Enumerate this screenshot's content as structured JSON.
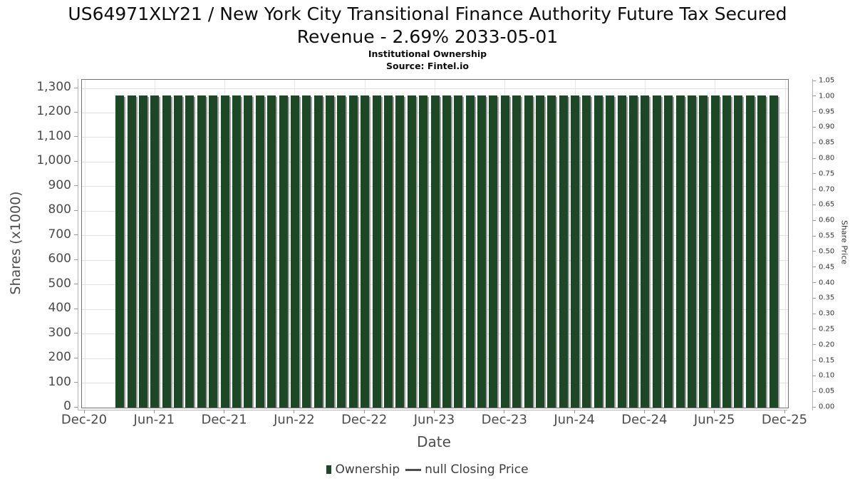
{
  "page": {
    "title_lines": [
      "US64971XLY21 / New York City Transitional Finance Authority Future Tax Secured",
      "Revenue - 2.69% 2033-05-01"
    ],
    "subtitle": "Institutional Ownership",
    "source": "Source: Fintel.io"
  },
  "chart_data": {
    "type": "bar",
    "title": "US64971XLY21 / New York City Transitional Finance Authority Future Tax Secured Revenue - 2.69% 2033-05-01",
    "subtitle": "Institutional Ownership",
    "source": "Source: Fintel.io",
    "xlabel": "Date",
    "ylabel_left": "Shares (x1000)",
    "ylabel_right": "Share Price",
    "grid": true,
    "legend_position": "bottom",
    "x_ticks": [
      "Dec-20",
      "Jun-21",
      "Dec-21",
      "Jun-22",
      "Dec-22",
      "Jun-23",
      "Dec-23",
      "Jun-24",
      "Dec-24",
      "Jun-25",
      "Dec-25"
    ],
    "yleft_ticks": [
      "0",
      "100",
      "200",
      "300",
      "400",
      "500",
      "600",
      "700",
      "800",
      "900",
      "1,000",
      "1,100",
      "1,200",
      "1,300"
    ],
    "yleft_range": [
      0,
      1300
    ],
    "yright_range": [
      0,
      1.05
    ],
    "yright_step": 0.05,
    "categories": [
      "Mar-21",
      "Apr-21",
      "May-21",
      "Jun-21",
      "Jul-21",
      "Aug-21",
      "Sep-21",
      "Oct-21",
      "Nov-21",
      "Dec-21",
      "Jan-22",
      "Feb-22",
      "Mar-22",
      "Apr-22",
      "May-22",
      "Jun-22",
      "Jul-22",
      "Aug-22",
      "Sep-22",
      "Oct-22",
      "Nov-22",
      "Dec-22",
      "Jan-23",
      "Feb-23",
      "Mar-23",
      "Apr-23",
      "May-23",
      "Jun-23",
      "Jul-23",
      "Aug-23",
      "Sep-23",
      "Oct-23",
      "Nov-23",
      "Dec-23",
      "Jan-24",
      "Feb-24",
      "Mar-24",
      "Apr-24",
      "May-24",
      "Jun-24",
      "Jul-24",
      "Aug-24",
      "Sep-24",
      "Oct-24",
      "Nov-24",
      "Dec-24",
      "Jan-25",
      "Feb-25",
      "Mar-25",
      "Apr-25",
      "May-25",
      "Jun-25",
      "Jul-25",
      "Aug-25",
      "Sep-25",
      "Oct-25",
      "Nov-25"
    ],
    "series": [
      {
        "name": "Ownership",
        "type": "bar",
        "color": "#1d4826",
        "values": [
          1270,
          1270,
          1270,
          1270,
          1270,
          1270,
          1270,
          1270,
          1270,
          1270,
          1270,
          1270,
          1270,
          1270,
          1270,
          1270,
          1270,
          1270,
          1270,
          1270,
          1270,
          1270,
          1270,
          1270,
          1270,
          1270,
          1270,
          1270,
          1270,
          1270,
          1270,
          1270,
          1270,
          1270,
          1270,
          1270,
          1270,
          1270,
          1270,
          1270,
          1270,
          1270,
          1270,
          1270,
          1270,
          1270,
          1270,
          1270,
          1270,
          1270,
          1270,
          1270,
          1270,
          1270,
          1270,
          1270,
          1270
        ]
      },
      {
        "name": "null Closing Price",
        "type": "line",
        "color": "#4d4d4d",
        "values": []
      }
    ]
  },
  "colors": {
    "bar": "#1d4826",
    "bar_shadow": "#9c9c9c",
    "grid": "#e0e0e0",
    "plot_border": "#737373",
    "axis_line": "#b3b3b3",
    "tick_text": "#4a4a4a"
  }
}
